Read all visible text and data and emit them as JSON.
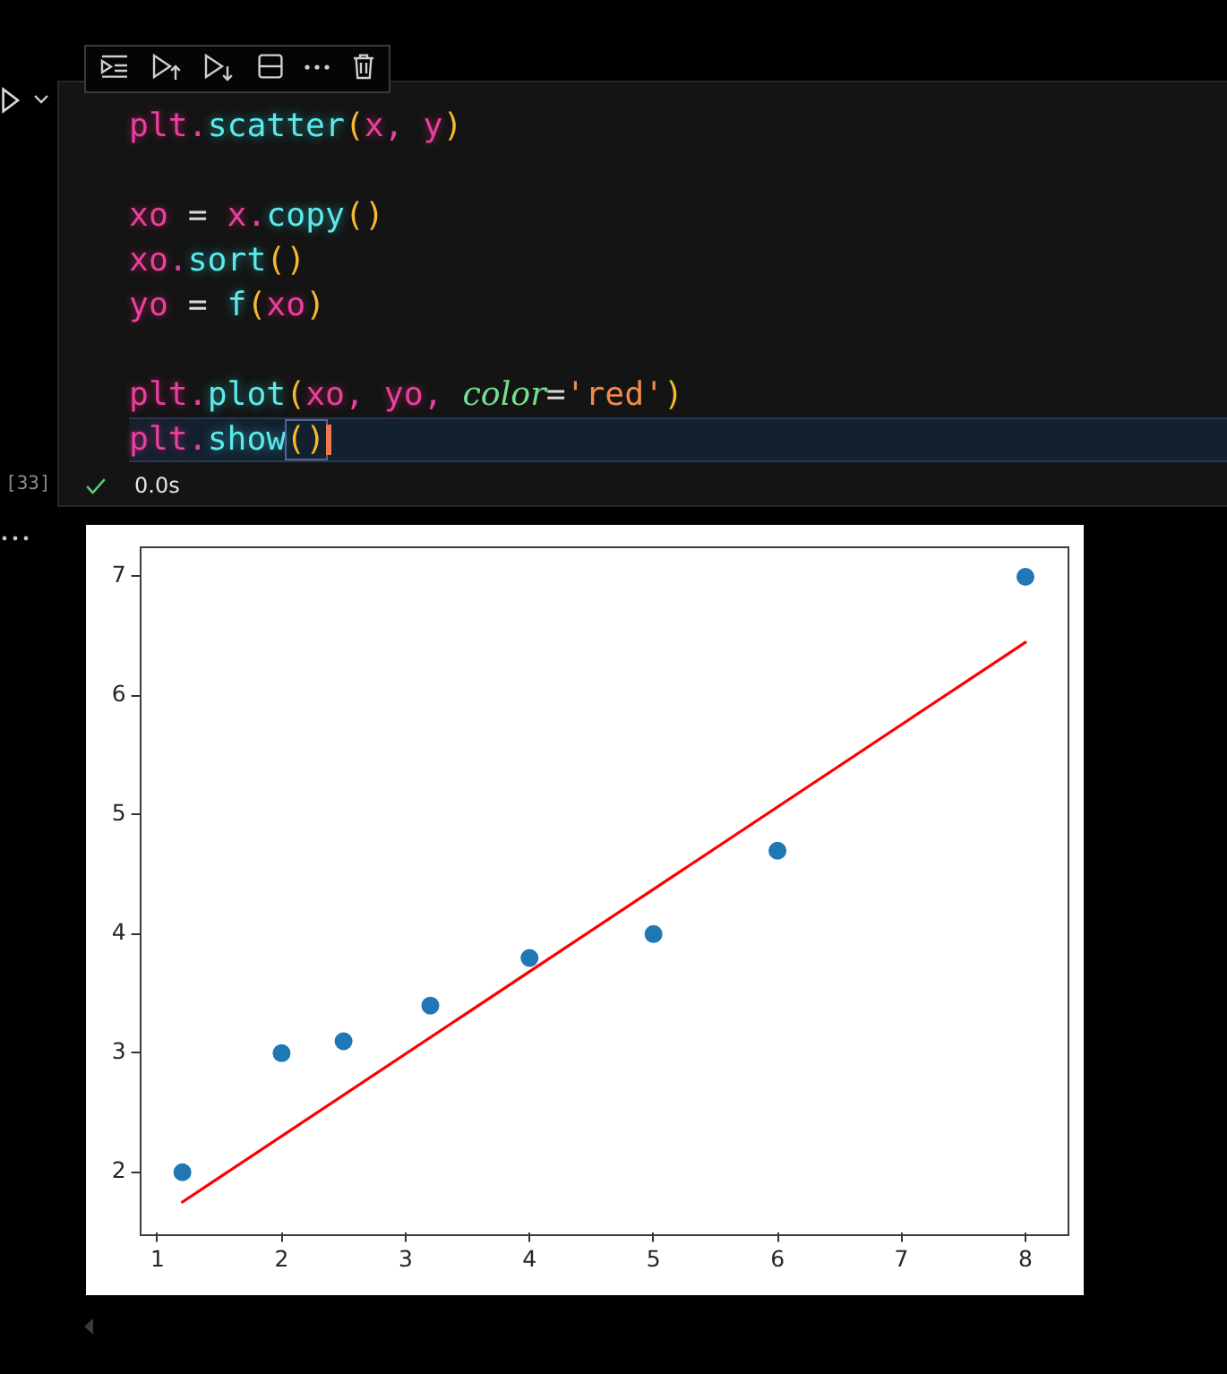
{
  "chart_data": {
    "type": "scatter",
    "xlim": [
      0.86,
      8.34
    ],
    "xticks": [
      1,
      2,
      3,
      4,
      5,
      6,
      7,
      8
    ],
    "ylim": [
      1.49,
      7.26
    ],
    "yticks": [
      2,
      3,
      4,
      5,
      6,
      7
    ],
    "series": [
      {
        "color": "#1f77b4",
        "marker": "circle",
        "x": [
          1.2,
          2,
          2.5,
          3.2,
          4,
          5,
          6,
          8
        ],
        "values": [
          2,
          3,
          3.1,
          3.4,
          3.8,
          4,
          4.7,
          7
        ]
      },
      {
        "type": "line",
        "color": "#ff0000",
        "marker": "none",
        "x": [
          1.2,
          8
        ],
        "values": [
          1.75,
          6.45
        ]
      }
    ],
    "annotations": [
      "plt.scatter(x, y)\n\nxo = x.copy()\nxo.sort()\nyo = f(xo)\n\nplt.plot(xo, yo, color='red')\nplt.show()",
      "[33]",
      "0.0s"
    ]
  }
}
